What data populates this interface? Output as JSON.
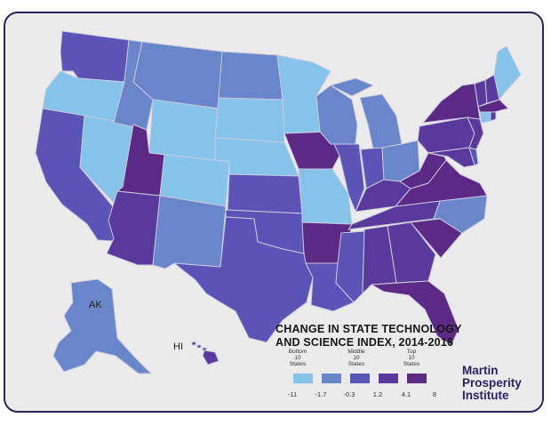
{
  "title_line1": "CHANGE IN STATE TECHNOLOGY",
  "title_line2": "AND SCIENCE INDEX, 2014-2016",
  "labels": {
    "ak": "AK",
    "hi": "HI"
  },
  "legend": {
    "headings": [
      {
        "lines": [
          "Bottom",
          "10",
          "States"
        ]
      },
      {
        "lines": [
          "Middle",
          "10",
          "States"
        ]
      },
      {
        "lines": [
          "Top",
          "10",
          "States"
        ]
      }
    ],
    "ticks": [
      "-11",
      "-1.7",
      "-0.3",
      "1.2",
      "4.1",
      "8"
    ],
    "colors": [
      "#85c3ea",
      "#6986cb",
      "#5a54b6",
      "#593a9c",
      "#5b2a84"
    ]
  },
  "logo": [
    "Martin",
    "Prosperity",
    "Institute"
  ],
  "border_color": "#2a2558"
}
